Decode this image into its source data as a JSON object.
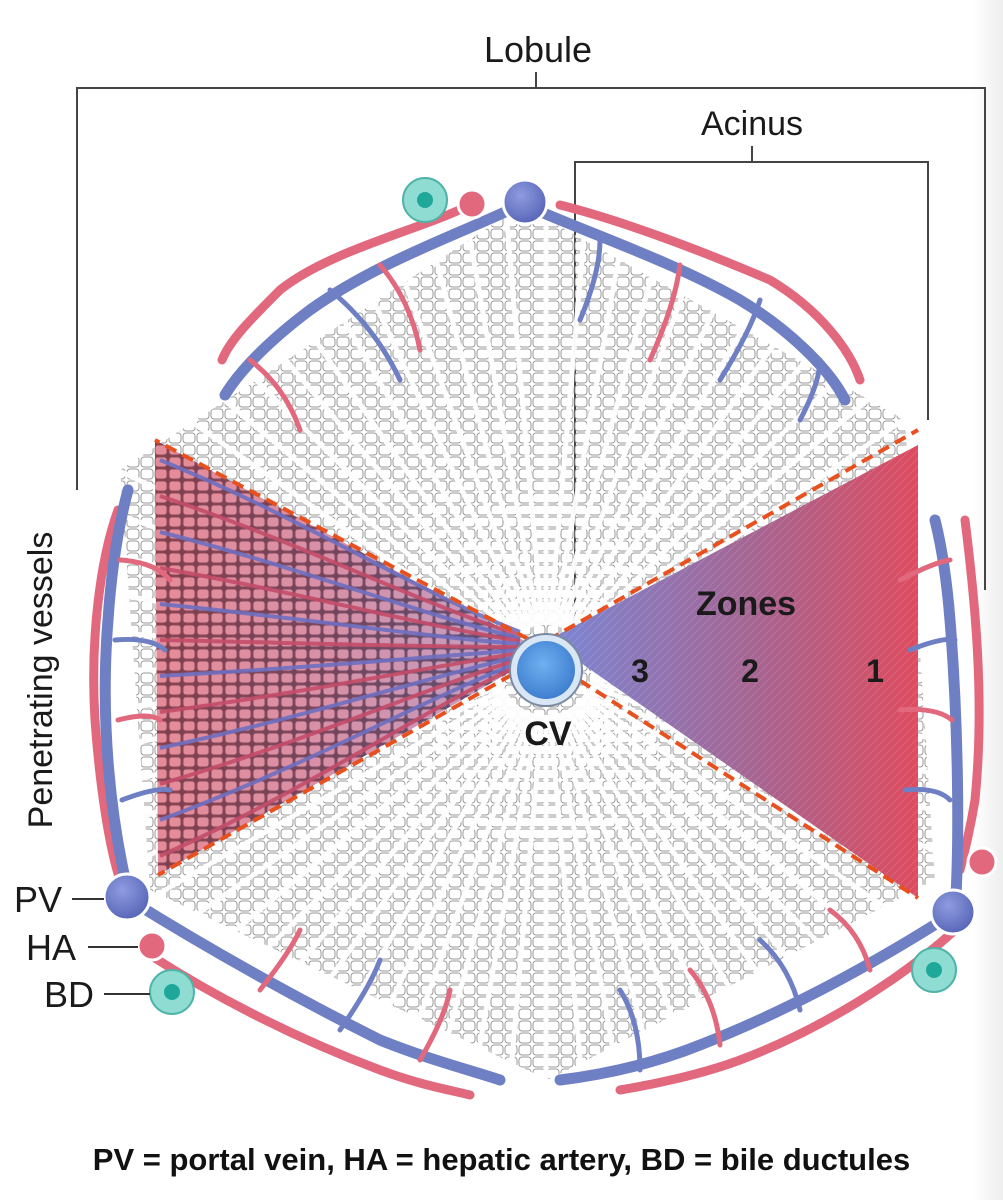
{
  "labels": {
    "lobule": "Lobule",
    "acinus": "Acinus",
    "penetrating_vessels": "Penetrating vessels",
    "zones": "Zones",
    "zone_3": "3",
    "zone_2": "2",
    "zone_1": "1",
    "cv": "CV",
    "pv": "PV",
    "ha": "HA",
    "bd": "BD"
  },
  "caption": "PV = portal vein, HA = hepatic artery, BD = bile ductules",
  "colors": {
    "portal_vein": "#6f7fc4",
    "hepatic_artery": "#e2697d",
    "bile_duct": "#7fd6cc",
    "central_vein": "#4f8fde",
    "zone_boundary": "#e8501e",
    "hepatocyte_outline": "#8a8a8a",
    "zone_3_color": "#7e7fcf",
    "zone_1_color": "#e0485a"
  }
}
